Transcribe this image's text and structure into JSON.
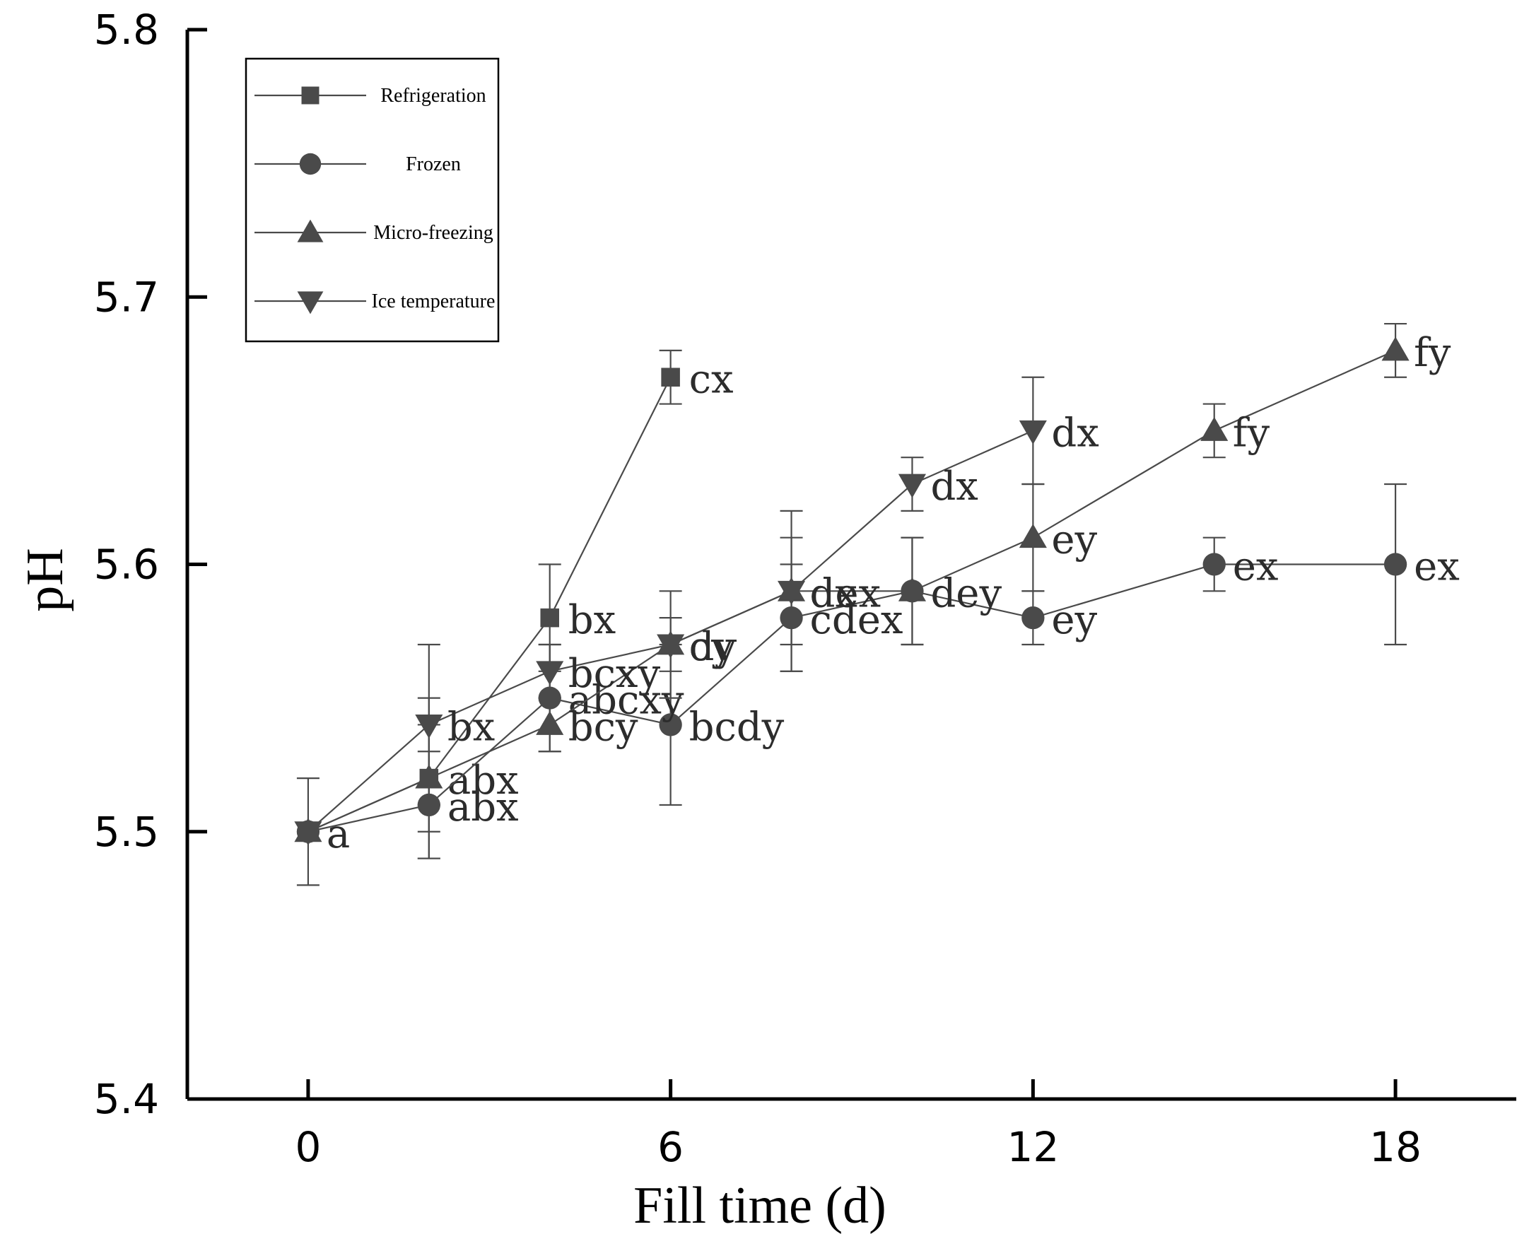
{
  "chart_data": {
    "type": "line",
    "title": "",
    "xlabel": "Fill time (d)",
    "ylabel": "pH",
    "xlim": [
      -2,
      20
    ],
    "ylim": [
      5.4,
      5.8
    ],
    "xticks": [
      0,
      6,
      12,
      18
    ],
    "xtick_labels": [
      "0",
      "6",
      "12",
      "18"
    ],
    "yticks": [
      5.4,
      5.5,
      5.6,
      5.7,
      5.8
    ],
    "ytick_labels": [
      "5.4",
      "5.5",
      "5.6",
      "5.7",
      "5.8"
    ],
    "grid": false,
    "legend_position": "top-left",
    "series": [
      {
        "name": "Refrigeration",
        "marker": "square",
        "x": [
          0,
          2,
          4,
          6
        ],
        "values": [
          5.5,
          5.52,
          5.58,
          5.67
        ],
        "err": [
          0.02,
          0.03,
          0.02,
          0.01
        ],
        "labels": [
          "",
          "abx",
          "bx",
          "cx"
        ]
      },
      {
        "name": "Frozen",
        "marker": "circle",
        "x": [
          0,
          2,
          4,
          6,
          8,
          10,
          12,
          15,
          18
        ],
        "values": [
          5.5,
          5.51,
          5.55,
          5.54,
          5.58,
          5.59,
          5.58,
          5.6,
          5.6
        ],
        "err": [
          0.0,
          0.02,
          0.02,
          0.03,
          0.02,
          0.02,
          0.01,
          0.01,
          0.03
        ],
        "labels": [
          "a",
          "abx",
          "abcxy",
          "bcdy",
          "cdex",
          "dey",
          "ey",
          "ex",
          "ex"
        ]
      },
      {
        "name": "Micro-freezing",
        "marker": "triangle-up",
        "x": [
          0,
          2,
          4,
          6,
          8,
          10,
          12,
          15,
          18
        ],
        "values": [
          5.5,
          5.52,
          5.54,
          5.57,
          5.59,
          5.59,
          5.61,
          5.65,
          5.68
        ],
        "err": [
          0.0,
          0.02,
          0.01,
          0.02,
          0.02,
          0.02,
          0.02,
          0.01,
          0.01
        ],
        "labels": [
          "",
          "",
          "bcy",
          "cy",
          "dex",
          "",
          "ey",
          "fy",
          "fy"
        ]
      },
      {
        "name": "Ice temperature",
        "marker": "triangle-down",
        "x": [
          0,
          2,
          4,
          6,
          8,
          10,
          12
        ],
        "values": [
          5.5,
          5.54,
          5.56,
          5.57,
          5.59,
          5.63,
          5.65
        ],
        "err": [
          0.0,
          0.03,
          0.01,
          0.01,
          0.03,
          0.01,
          0.02
        ],
        "labels": [
          "",
          "bx",
          "bcxy",
          "dy",
          "dx",
          "dx",
          "dx"
        ]
      }
    ]
  }
}
